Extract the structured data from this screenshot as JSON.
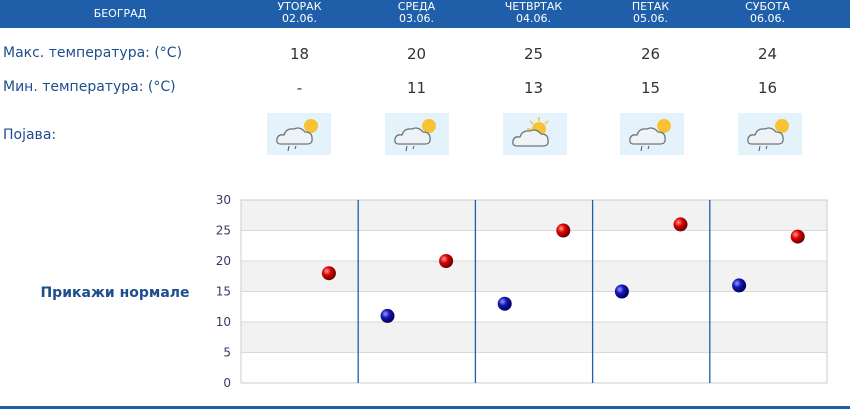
{
  "header": {
    "city": "БЕОГРАД",
    "days": [
      {
        "name": "УТОРАК",
        "date": "02.06."
      },
      {
        "name": "СРЕДА",
        "date": "03.06."
      },
      {
        "name": "ЧЕТВРТАК",
        "date": "04.06."
      },
      {
        "name": "ПЕТАК",
        "date": "05.06."
      },
      {
        "name": "СУБОТА",
        "date": "06.06."
      }
    ]
  },
  "rows": {
    "max_label": "Макс. температура: (°C)",
    "min_label": "Мин. температура: (°C)",
    "phenomenon_label": "Појава:",
    "max_values": [
      "18",
      "20",
      "25",
      "26",
      "24"
    ],
    "min_values": [
      "-",
      "11",
      "13",
      "15",
      "16"
    ],
    "icons": [
      "cloud-sun-rain-icon",
      "cloud-sun-rain-icon",
      "cloud-sun-icon",
      "cloud-sun-rain-icon",
      "cloud-sun-rain-icon"
    ]
  },
  "show_normals": "Прикажи нормале",
  "colors": {
    "header_bg": "#1f5ea8",
    "label_text": "#1f4e8c",
    "max_point": "#cc0000",
    "min_point": "#1a1aaa",
    "icon_bg": "#e4f3fb"
  },
  "chart_data": {
    "type": "scatter",
    "ylim": [
      0,
      30
    ],
    "yticks": [
      0,
      5,
      10,
      15,
      20,
      25,
      30
    ],
    "grid": true,
    "series": [
      {
        "values": [
          18,
          20,
          25,
          26,
          24
        ]
      },
      {
        "values": [
          null,
          11,
          13,
          15,
          16
        ]
      }
    ]
  }
}
